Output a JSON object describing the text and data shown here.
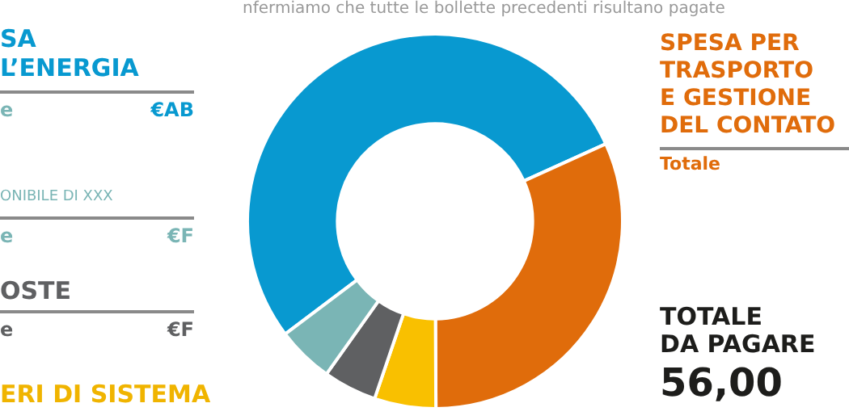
{
  "chart_data": {
    "type": "donut",
    "categories": [
      null,
      null,
      null,
      null,
      null
    ],
    "values": [
      53.5,
      31.7,
      5.3,
      4.6,
      4.9
    ],
    "colors": [
      "#0899d0",
      "#e06c0b",
      "#f9c000",
      "#5f6062",
      "#7ab5b5"
    ],
    "legend": false,
    "annotations": [
      "nfermiamo che tutte le bollette precedenti risultano pagate",
      "SA",
      "L’ENERGIA",
      "e",
      "€AB",
      "ONIBILE DI XXX",
      "e",
      "€F",
      "OSTE",
      "e",
      "€F",
      "ERI DI SISTEMA",
      "SPESA PER",
      "TRASPORTO",
      "E GESTIONE",
      "DEL CONTATO",
      "Totale",
      "TOTALE",
      "DA PAGARE",
      "56,00"
    ]
  }
}
